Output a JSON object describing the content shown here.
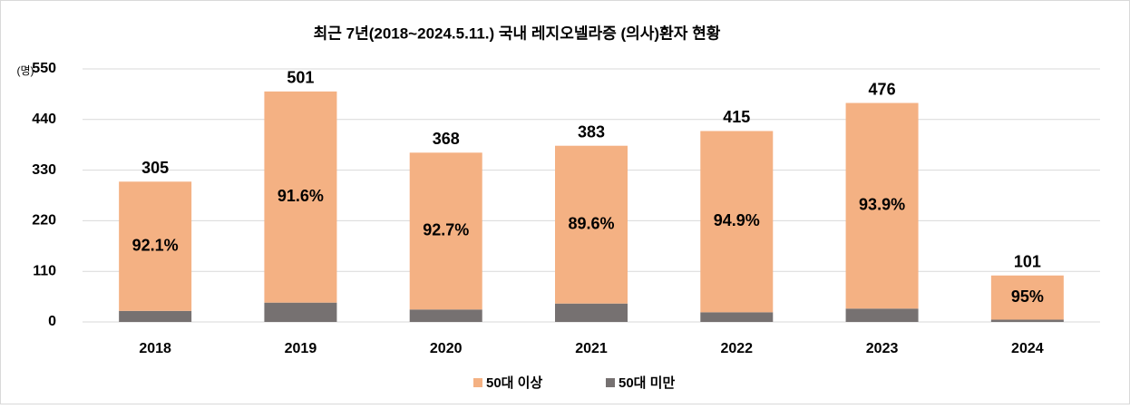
{
  "chart_data": {
    "type": "stacked_bar",
    "title": "최근 7년(2018~2024.5.11.) 국내 레지오넬라증 (의사)환자 현황",
    "y_unit_label": "(명)",
    "categories": [
      "2018",
      "2019",
      "2020",
      "2021",
      "2022",
      "2023",
      "2024"
    ],
    "series": [
      {
        "name": "50대 이상",
        "color": "#f4b183",
        "values": [
          281,
          459,
          341,
          343,
          394,
          447,
          96
        ]
      },
      {
        "name": "50대 미만",
        "color": "#767171",
        "values": [
          24,
          42,
          27,
          40,
          21,
          29,
          5
        ]
      }
    ],
    "totals": [
      305,
      501,
      368,
      383,
      415,
      476,
      101
    ],
    "percent_labels": [
      "92.1%",
      "91.6%",
      "92.7%",
      "89.6%",
      "94.9%",
      "93.9%",
      "95%"
    ],
    "ylim": [
      0,
      550
    ],
    "yticks": [
      0,
      110,
      220,
      330,
      440,
      550
    ],
    "grid": true,
    "legend": "bottom"
  }
}
